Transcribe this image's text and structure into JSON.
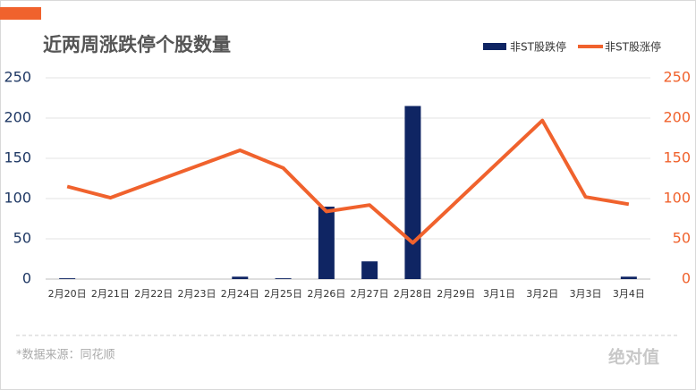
{
  "chart_data": {
    "type": "bar_line",
    "title": "近两周涨跌停个股数量",
    "source": "*数据来源：同花顺",
    "watermark": "绝对值",
    "categories": [
      "2月20日",
      "2月21日",
      "2月22日",
      "2月23日",
      "2月24日",
      "2月25日",
      "2月26日",
      "2月27日",
      "2月28日",
      "2月29日",
      "3月1日",
      "3月2日",
      "3月3日",
      "3月4日"
    ],
    "series": [
      {
        "name": "非ST股跌停",
        "type": "bar",
        "color": "#0f2563",
        "values": [
          1,
          0,
          null,
          null,
          3,
          1,
          90,
          22,
          215,
          null,
          null,
          0,
          0,
          3
        ]
      },
      {
        "name": "非ST股涨停",
        "type": "line",
        "axis": "y2",
        "color": "#f0622d",
        "values": [
          115,
          101,
          null,
          null,
          160,
          138,
          84,
          92,
          45,
          null,
          null,
          197,
          102,
          93
        ]
      }
    ],
    "connect_gaps": true,
    "ylim": [
      0,
      250
    ],
    "yticks": [
      0,
      50,
      100,
      150,
      200,
      250
    ],
    "y2lim": [
      0,
      250
    ],
    "y2ticks": [
      0,
      50,
      100,
      150,
      200,
      250
    ],
    "grid": true,
    "legend": "top-right"
  }
}
